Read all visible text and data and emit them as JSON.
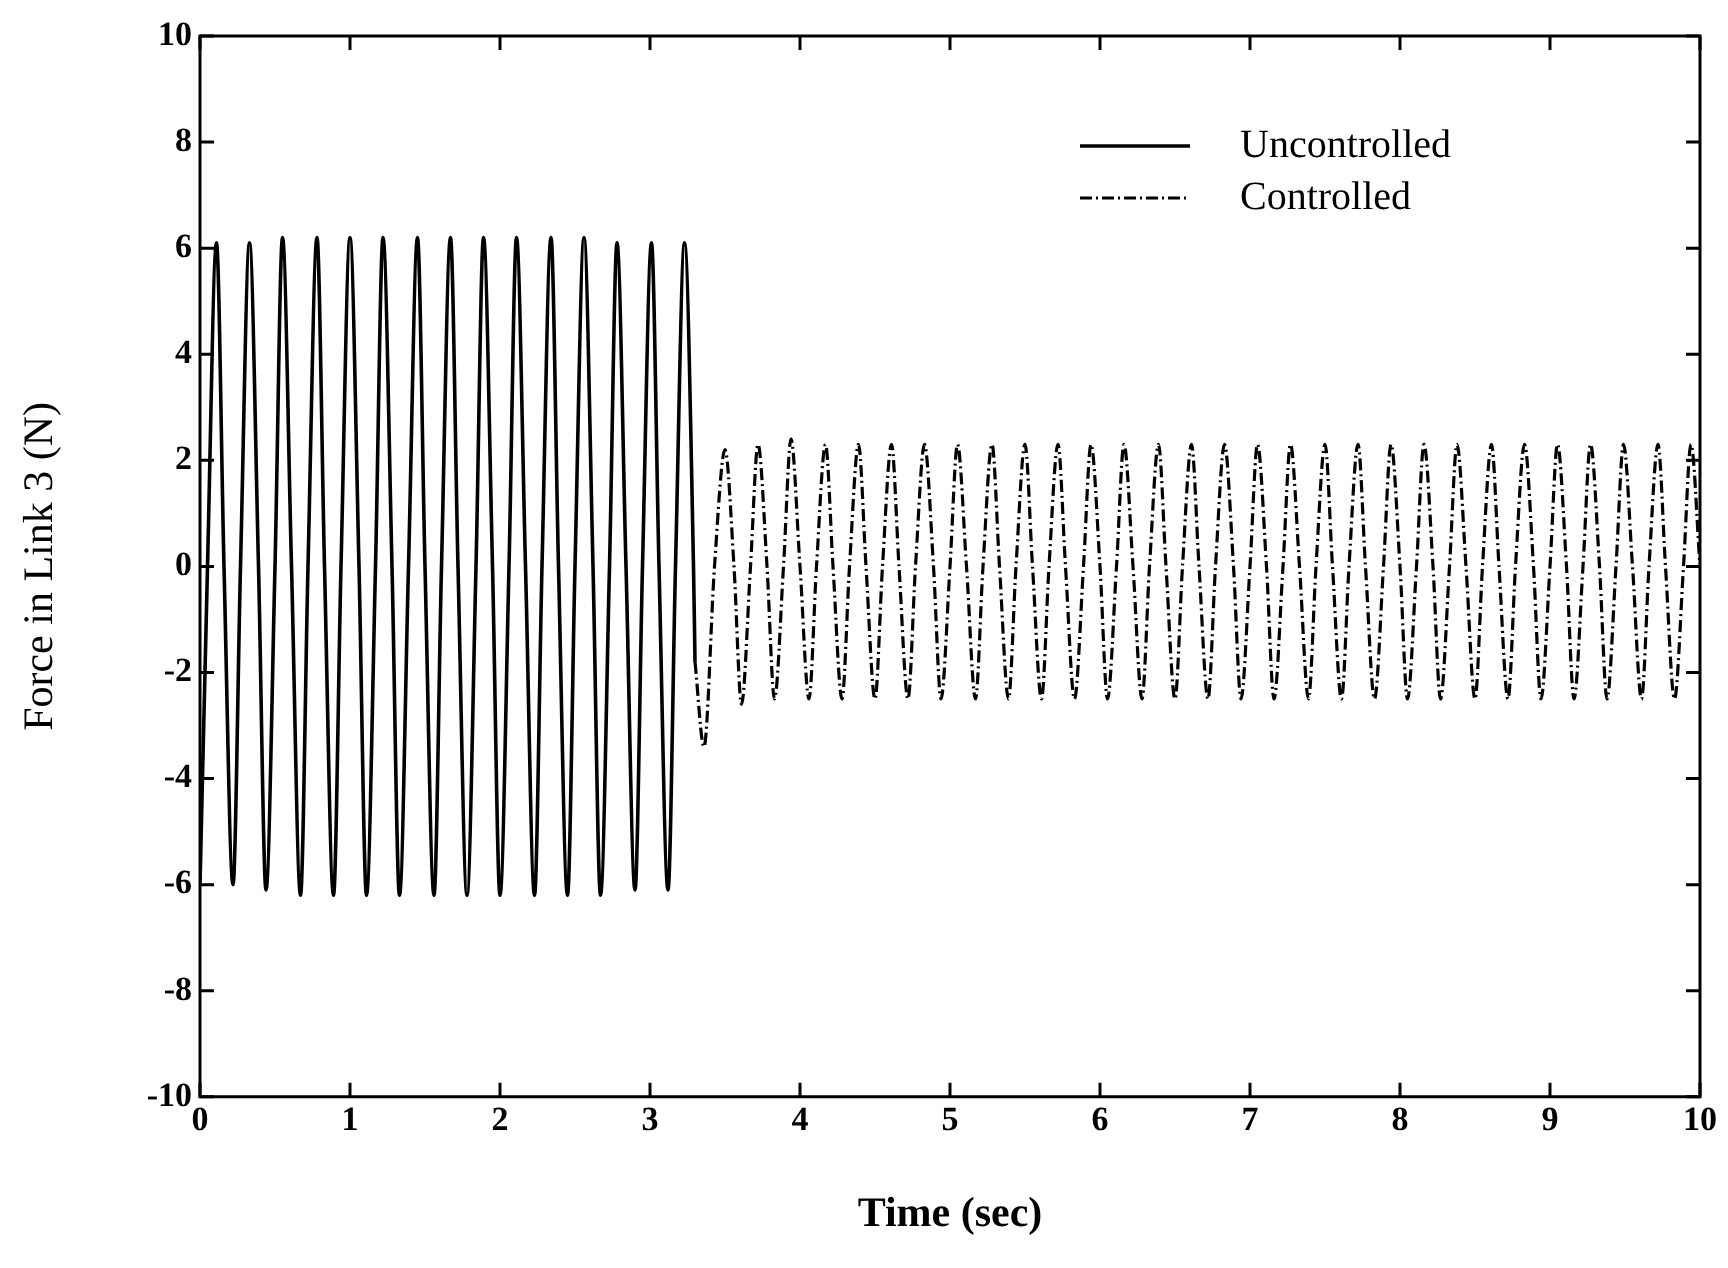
{
  "chart_data": {
    "type": "line",
    "xlabel": "Time (sec)",
    "ylabel": "Force in Link 3 (N)",
    "xlim": [
      0,
      10
    ],
    "xticks": [
      0,
      1,
      2,
      3,
      4,
      5,
      6,
      7,
      8,
      9,
      10
    ],
    "ylim": [
      -10,
      10
    ],
    "yticks": [
      -10,
      -8,
      -6,
      -4,
      -2,
      0,
      2,
      4,
      6,
      8,
      10
    ],
    "grid": false,
    "legend": "top right",
    "marker": "none",
    "series": [
      {
        "name": "Uncontrolled",
        "color": "#000000",
        "line_style": "solid",
        "x": [
          0,
          0.05,
          0.11,
          0.16,
          0.22,
          0.27,
          0.33,
          0.39,
          0.44,
          0.5,
          0.55,
          0.61,
          0.67,
          0.72,
          0.78,
          0.83,
          0.89,
          0.94,
          1.0,
          1.06,
          1.11,
          1.17,
          1.22,
          1.28,
          1.33,
          1.39,
          1.45,
          1.5,
          1.56,
          1.61,
          1.67,
          1.72,
          1.78,
          1.84,
          1.89,
          1.95,
          2.0,
          2.06,
          2.11,
          2.17,
          2.23,
          2.28,
          2.34,
          2.39,
          2.45,
          2.5,
          2.56,
          2.62,
          2.67,
          2.73,
          2.78,
          2.84,
          2.9,
          2.95,
          3.01,
          3.06,
          3.12,
          3.17,
          3.23,
          3.29,
          3.3
        ],
        "values": [
          -6.0,
          0,
          6.1,
          0,
          -6.0,
          0,
          6.1,
          0,
          -6.1,
          0,
          6.2,
          0,
          -6.2,
          0,
          6.2,
          0,
          -6.2,
          0,
          6.2,
          0,
          -6.2,
          0,
          6.2,
          0,
          -6.2,
          0,
          6.2,
          0,
          -6.2,
          0,
          6.2,
          0,
          -6.2,
          0,
          6.2,
          0,
          -6.2,
          0,
          6.2,
          0,
          -6.2,
          0,
          6.2,
          0,
          -6.2,
          0,
          6.2,
          0,
          -6.2,
          0,
          6.1,
          0,
          -6.1,
          0,
          6.1,
          0,
          -6.1,
          0,
          6.1,
          0,
          -1.8
        ]
      },
      {
        "name": "Controlled",
        "color": "#000000",
        "line_style": "dashed",
        "x": [
          3.3,
          3.36,
          3.43,
          3.5,
          3.56,
          3.61,
          3.67,
          3.72,
          3.78,
          3.83,
          3.89,
          3.94,
          4.0,
          4.06,
          4.11,
          4.17,
          4.22,
          4.28,
          4.33,
          4.39,
          4.44,
          4.5,
          4.55,
          4.61,
          4.66,
          4.72,
          4.77,
          4.83,
          4.89,
          4.94,
          5.0,
          5.05,
          5.11,
          5.17,
          5.22,
          5.28,
          5.33,
          5.39,
          5.44,
          5.5,
          5.55,
          5.61,
          5.66,
          5.72,
          5.77,
          5.83,
          5.89,
          5.94,
          6.0,
          6.05,
          6.11,
          6.16,
          6.22,
          6.28,
          6.33,
          6.39,
          6.44,
          6.5,
          6.55,
          6.61,
          6.66,
          6.72,
          6.77,
          6.83,
          6.89,
          6.94,
          7.0,
          7.05,
          7.11,
          7.16,
          7.22,
          7.27,
          7.33,
          7.39,
          7.44,
          7.5,
          7.55,
          7.61,
          7.66,
          7.72,
          7.77,
          7.83,
          7.89,
          7.94,
          8.0,
          8.05,
          8.11,
          8.16,
          8.22,
          8.27,
          8.33,
          8.38,
          8.44,
          8.5,
          8.55,
          8.61,
          8.66,
          8.72,
          8.77,
          8.83,
          8.89,
          8.94,
          9.0,
          9.05,
          9.11,
          9.16,
          9.22,
          9.27,
          9.33,
          9.38,
          9.44,
          9.49,
          9.55,
          9.61,
          9.66,
          9.72,
          9.77,
          9.83,
          9.89,
          9.94,
          10.0
        ],
        "values": [
          -1.8,
          -3.4,
          0,
          2.2,
          0,
          -2.6,
          0,
          2.3,
          0,
          -2.5,
          0,
          2.4,
          0,
          -2.5,
          0,
          2.3,
          0,
          -2.5,
          0,
          2.3,
          0,
          -2.5,
          0,
          2.3,
          0,
          -2.5,
          0,
          2.3,
          0,
          -2.5,
          0,
          2.3,
          0,
          -2.5,
          0,
          2.3,
          0,
          -2.5,
          0,
          2.3,
          0,
          -2.5,
          0,
          2.3,
          0,
          -2.5,
          0,
          2.3,
          0,
          -2.5,
          0,
          2.3,
          0,
          -2.5,
          0,
          2.3,
          0,
          -2.5,
          0,
          2.3,
          0,
          -2.5,
          0,
          2.3,
          0,
          -2.5,
          0,
          2.3,
          0,
          -2.5,
          0,
          2.3,
          0,
          -2.5,
          0,
          2.3,
          0,
          -2.5,
          0,
          2.3,
          0,
          -2.5,
          0,
          2.3,
          0,
          -2.5,
          0,
          2.3,
          0,
          -2.5,
          0,
          2.3,
          0,
          -2.5,
          0,
          2.3,
          0,
          -2.5,
          0,
          2.3,
          0,
          -2.5,
          0,
          2.3,
          0,
          -2.5,
          0,
          2.3,
          0,
          -2.5,
          0,
          2.3,
          0,
          -2.5,
          0,
          2.3,
          0,
          -2.5,
          0,
          2.3,
          0
        ]
      }
    ]
  }
}
